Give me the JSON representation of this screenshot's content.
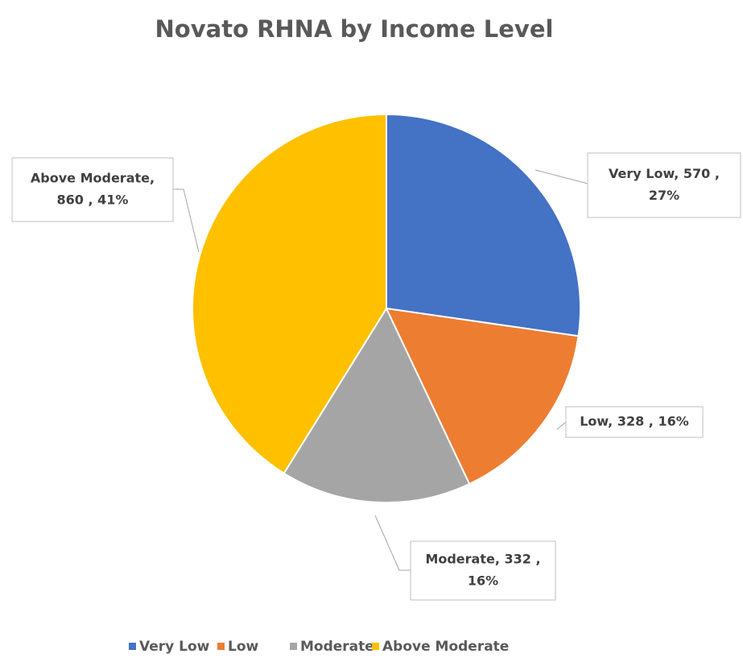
{
  "chart_data": {
    "type": "pie",
    "title": "Novato RHNA by Income Level",
    "categories": [
      "Very Low",
      "Low",
      "Moderate",
      "Above Moderate"
    ],
    "values": [
      570,
      328,
      332,
      860
    ],
    "value_labels": [
      [
        "Very Low,  570 ,",
        "27%"
      ],
      [
        "Low,  328 , 16%"
      ],
      [
        "Moderate,  332 ,",
        "16%"
      ],
      [
        "Above Moderate,",
        "860 , 41%"
      ]
    ],
    "colors": [
      "#4472c4",
      "#ed7d31",
      "#a5a5a5",
      "#ffc000"
    ],
    "legend": "bottom"
  }
}
